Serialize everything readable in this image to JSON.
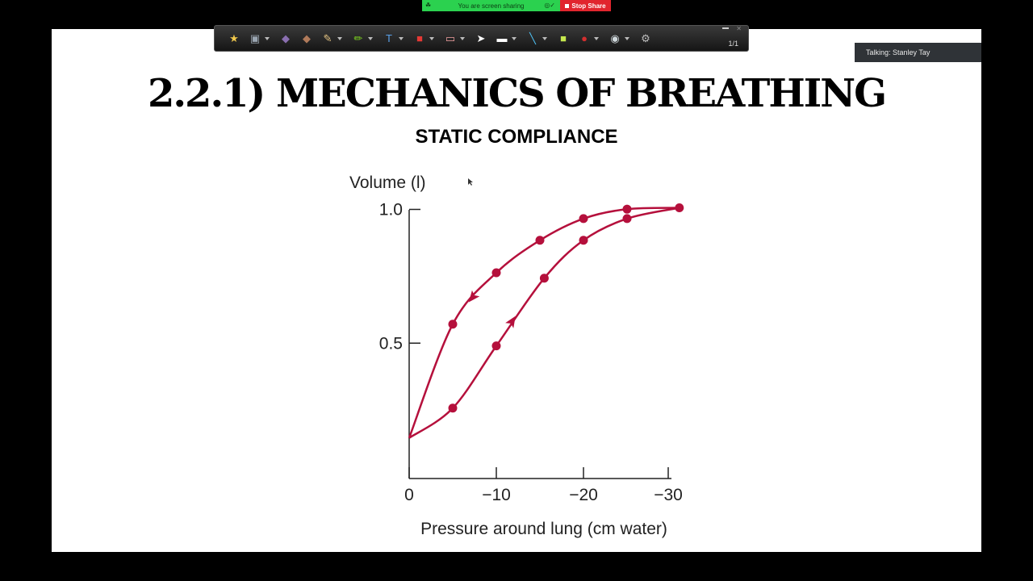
{
  "share_bar": {
    "status_text": "You are screen sharing",
    "stop_label": "Stop Share"
  },
  "toolbar": {
    "page_counter": "1/1",
    "tools": [
      {
        "icon": "star-page-icon",
        "color": "#f2c94c"
      },
      {
        "icon": "save-icon",
        "color": "#9aa5b1"
      },
      {
        "icon": "previous-page-icon",
        "color": "#8a6fb0"
      },
      {
        "icon": "next-page-icon",
        "color": "#b07a5a"
      },
      {
        "icon": "pen-icon",
        "color": "#e0c080"
      },
      {
        "icon": "highlighter-icon",
        "color": "#7ed321"
      },
      {
        "icon": "text-icon",
        "color": "#5aa0e8"
      },
      {
        "icon": "shapes-icon",
        "color": "#e53935"
      },
      {
        "icon": "eraser-icon",
        "color": "#f0a0a0"
      },
      {
        "icon": "pointer-icon",
        "color": "#ffffff"
      },
      {
        "icon": "whiteboard-icon",
        "color": "#ffffff"
      },
      {
        "icon": "line-tool-icon",
        "color": "#4fc3f7"
      },
      {
        "icon": "screen-region-icon",
        "color": "#c6e84e"
      },
      {
        "icon": "record-icon",
        "color": "#d32f2f"
      },
      {
        "icon": "webcam-icon",
        "color": "#cfd8dc"
      },
      {
        "icon": "settings-gear-icon",
        "color": "#bdbdbd"
      }
    ]
  },
  "talking_indicator": "Talking: Stanley Tay",
  "slide": {
    "title": "2.2.1) MECHANICS OF BREATHING",
    "subtitle": "STATIC COMPLIANCE"
  },
  "chart_data": {
    "type": "line",
    "ylabel": "Volume (l)",
    "xlabel": "Pressure around lung (cm water)",
    "x_ticks": [
      0,
      -10,
      -20,
      -30
    ],
    "x_tick_labels": [
      "0",
      "−10",
      "−20",
      "−30"
    ],
    "y_ticks": [
      0.5,
      1.0
    ],
    "y_tick_labels": [
      "0.5",
      "1.0"
    ],
    "xlim": [
      0,
      -30
    ],
    "ylim": [
      0,
      1.0
    ],
    "accent_color": "#b5103c",
    "series": [
      {
        "direction": "inflation",
        "x": [
          0,
          -5,
          -10,
          -15.5,
          -20,
          -25,
          -31
        ],
        "y": [
          0.15,
          0.26,
          0.49,
          0.74,
          0.88,
          0.96,
          1.0
        ]
      },
      {
        "direction": "deflation",
        "x": [
          -31,
          -25,
          -20,
          -15,
          -10,
          -5,
          0
        ],
        "y": [
          1.0,
          0.995,
          0.96,
          0.88,
          0.76,
          0.57,
          0.15
        ]
      }
    ],
    "markers": {
      "inflation": [
        [
          -5,
          0.26
        ],
        [
          -10,
          0.49
        ],
        [
          -15.5,
          0.74
        ],
        [
          -20,
          0.88
        ],
        [
          -25,
          0.96
        ],
        [
          -31,
          1.0
        ]
      ],
      "deflation": [
        [
          -5,
          0.57
        ],
        [
          -10,
          0.76
        ],
        [
          -15,
          0.88
        ],
        [
          -20,
          0.96
        ],
        [
          -25,
          0.995
        ]
      ]
    },
    "arrows": [
      {
        "series": "inflation",
        "at": [
          -11.8,
          0.58
        ],
        "toward": [
          -13,
          0.64
        ]
      },
      {
        "series": "deflation",
        "at": [
          -7.3,
          0.67
        ],
        "toward": [
          -6.3,
          0.63
        ]
      }
    ]
  }
}
